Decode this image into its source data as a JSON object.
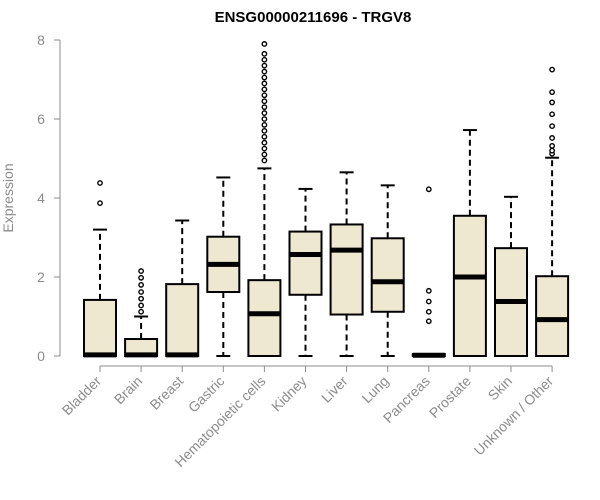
{
  "chart_data": {
    "type": "boxplot",
    "title": "ENSG00000211696 - TRGV8",
    "xlabel": "",
    "ylabel": "Expression",
    "ylim": [
      0,
      8
    ],
    "yticks": [
      0,
      2,
      4,
      6,
      8
    ],
    "grid": false,
    "legend": "none",
    "box_color": "#efe8d0",
    "line_color": "#000000",
    "axis_color": "#8c8c8c",
    "categories": [
      "Bladder",
      "Brain",
      "Breast",
      "Gastric",
      "Hematopoietic cells",
      "Kidney",
      "Liver",
      "Lung",
      "Pancreas",
      "Prostate",
      "Skin",
      "Unknown / Other"
    ],
    "boxes": [
      {
        "min": 0,
        "q1": 0,
        "median": 0.03,
        "q3": 1.42,
        "max": 3.2,
        "outliers": [
          3.87,
          4.38
        ]
      },
      {
        "min": 0,
        "q1": 0,
        "median": 0.03,
        "q3": 0.43,
        "max": 1.0,
        "outliers": [
          1.12,
          1.28,
          1.45,
          1.62,
          1.8,
          1.98,
          2.15
        ]
      },
      {
        "min": 0,
        "q1": 0,
        "median": 0.03,
        "q3": 1.82,
        "max": 3.43,
        "outliers": []
      },
      {
        "min": 0,
        "q1": 1.62,
        "median": 2.32,
        "q3": 3.02,
        "max": 4.52,
        "outliers": []
      },
      {
        "min": 0,
        "q1": 0,
        "median": 1.07,
        "q3": 1.92,
        "max": 4.75,
        "outliers": [
          4.95,
          5.1,
          5.25,
          5.4,
          5.55,
          5.7,
          5.85,
          6.0,
          6.15,
          6.3,
          6.45,
          6.6,
          6.75,
          6.9,
          7.05,
          7.2,
          7.35,
          7.5,
          7.65,
          7.9
        ]
      },
      {
        "min": 0,
        "q1": 1.55,
        "median": 2.57,
        "q3": 3.15,
        "max": 4.23,
        "outliers": []
      },
      {
        "min": 0,
        "q1": 1.05,
        "median": 2.68,
        "q3": 3.33,
        "max": 4.65,
        "outliers": []
      },
      {
        "min": 0,
        "q1": 1.12,
        "median": 1.88,
        "q3": 2.98,
        "max": 4.32,
        "outliers": []
      },
      {
        "min": 0,
        "q1": 0,
        "median": 0.02,
        "q3": 0.05,
        "max": 0.05,
        "outliers": [
          0.88,
          1.12,
          1.38,
          1.65,
          4.22
        ]
      },
      {
        "min": 0,
        "q1": 0,
        "median": 2.0,
        "q3": 3.55,
        "max": 5.72,
        "outliers": []
      },
      {
        "min": 0,
        "q1": 0,
        "median": 1.38,
        "q3": 2.73,
        "max": 4.03,
        "outliers": []
      },
      {
        "min": 0,
        "q1": 0,
        "median": 0.92,
        "q3": 2.02,
        "max": 5.02,
        "outliers": [
          5.12,
          5.2,
          5.32,
          5.52,
          5.82,
          6.12,
          6.42,
          6.68,
          7.25
        ]
      }
    ]
  }
}
